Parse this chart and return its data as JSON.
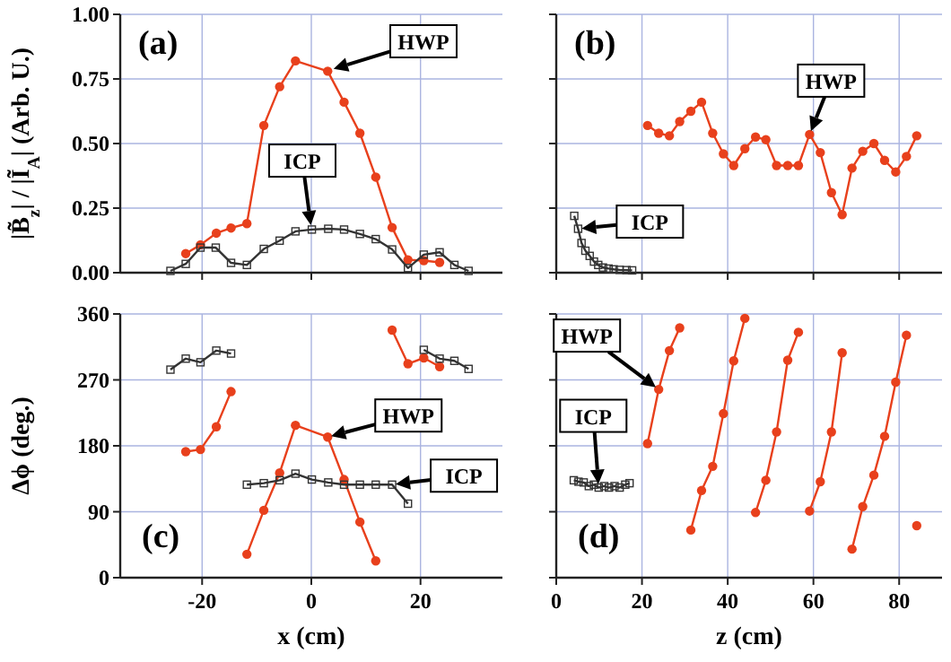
{
  "chart_data": [
    {
      "type": "line",
      "ylabel": "|B̃$_{z}$| / |Ĩ$_{A}$| (Arb. U.)",
      "xlim": [
        -35,
        35
      ],
      "xticks": [
        -20,
        0,
        20
      ],
      "ylim": [
        0,
        1
      ],
      "yticks": [
        {
          "value": 0,
          "label": "0.00"
        },
        {
          "value": 0.25,
          "label": "0.25"
        },
        {
          "value": 0.5,
          "label": "0.50"
        },
        {
          "value": 0.75,
          "label": "0.75"
        },
        {
          "value": 1,
          "label": "1.00"
        }
      ],
      "grid": true,
      "tick_labels": "y",
      "annotations": [
        "(a)",
        "HWP",
        {
          "text": "ICP",
          "x": 0,
          "y": 0.17
        }
      ],
      "series": [
        {
          "color": "#e8401c",
          "marker": "circle",
          "x": [
            -23,
            -20.3,
            -17.4,
            -14.7,
            -11.8,
            -8.7,
            -5.8,
            -2.9,
            3,
            6,
            8.9,
            11.8,
            14.8,
            17.7,
            20.6,
            23.5
          ],
          "values": [
            0.074,
            0.108,
            0.153,
            0.173,
            0.19,
            0.57,
            0.72,
            0.82,
            0.78,
            0.66,
            0.54,
            0.37,
            0.175,
            0.05,
            0.047,
            0.04
          ]
        },
        {
          "color": "#333333",
          "marker": "square",
          "x": [
            -25.8,
            -23,
            -20.3,
            -17.5,
            -14.7,
            -11.8,
            -8.7,
            -5.8,
            -2.9,
            0.1,
            3.1,
            6,
            8.9,
            11.8,
            14.8,
            17.7,
            20.6,
            23.5,
            26.2,
            28.8
          ],
          "values": [
            0.007,
            0.034,
            0.097,
            0.097,
            0.038,
            0.03,
            0.092,
            0.124,
            0.16,
            0.167,
            0.17,
            0.167,
            0.15,
            0.13,
            0.09,
            0.018,
            0.07,
            0.079,
            0.03,
            0.007
          ]
        }
      ]
    },
    {
      "type": "line",
      "xlim": [
        0,
        90
      ],
      "xticks": [
        0,
        20,
        40,
        60,
        80
      ],
      "ylim": [
        0,
        1
      ],
      "yticks": [
        0,
        0.25,
        0.5,
        0.75,
        1
      ],
      "grid": true,
      "tick_labels": false,
      "annotations": [
        "(b)",
        {
          "text": "HWP",
          "x": 59.1,
          "y": 0.535
        },
        {
          "text": "ICP",
          "x": 5.1,
          "y": 0.17
        }
      ],
      "series": [
        {
          "color": "#e8401c",
          "marker": "circle",
          "x": [
            21.3,
            23.9,
            26.4,
            28.8,
            31.4,
            33.9,
            36.5,
            39,
            41.4,
            44,
            46.5,
            48.9,
            51.4,
            54,
            56.5,
            59.1,
            61.6,
            64.2,
            66.7,
            69,
            71.5,
            74.1,
            76.6,
            79.2,
            81.7,
            84.1
          ],
          "values": [
            0.57,
            0.54,
            0.53,
            0.585,
            0.625,
            0.66,
            0.54,
            0.46,
            0.415,
            0.48,
            0.525,
            0.515,
            0.415,
            0.415,
            0.415,
            0.535,
            0.465,
            0.31,
            0.225,
            0.405,
            0.47,
            0.5,
            0.435,
            0.39,
            0.45,
            0.53
          ]
        },
        {
          "color": "#333333",
          "marker": "square",
          "x": [
            4.2,
            5.1,
            5.9,
            6.8,
            7.8,
            8.8,
            9.8,
            10.9,
            12.2,
            13.4,
            14.8,
            16.4,
            17.7
          ],
          "values": [
            0.22,
            0.17,
            0.115,
            0.085,
            0.065,
            0.043,
            0.03,
            0.02,
            0.016,
            0.013,
            0.011,
            0.01,
            0.009
          ]
        }
      ]
    },
    {
      "type": "line",
      "xlabel": "x (cm)",
      "ylabel": "Δϕ (deg.)",
      "xlim": [
        -35,
        35
      ],
      "xticks": [
        -20,
        0,
        20
      ],
      "ylim": [
        0,
        360
      ],
      "yticks": [
        0,
        90,
        180,
        270,
        360
      ],
      "grid": true,
      "annotations": [
        "(c)",
        {
          "text": "HWP",
          "x": 3,
          "y": 192
        },
        {
          "text": "ICP",
          "x": 14.8,
          "y": 127
        }
      ],
      "series": [
        {
          "color": "#e8401c",
          "marker": "circle",
          "x": [
            -23,
            -20.3,
            -17.4,
            -14.7,
            -13,
            -11.8,
            -8.7,
            -5.8,
            -2.9,
            3,
            6,
            8.9,
            11.8,
            13,
            14.8,
            17.7,
            20.6,
            23.5
          ],
          "values": [
            172,
            175,
            206,
            254,
            null,
            32,
            92,
            143,
            208,
            192,
            134,
            76,
            23,
            null,
            338,
            292,
            300,
            288
          ]
        },
        {
          "color": "#333333",
          "marker": "square",
          "x": [
            -25.8,
            -23,
            -20.3,
            -17.4,
            -14.7,
            -13,
            -11.8,
            -8.7,
            -5.8,
            -2.9,
            0.1,
            3.1,
            6,
            8.9,
            11.8,
            14.8,
            17.7,
            19,
            20.6,
            23.5,
            26.2,
            28.8
          ],
          "values": [
            284,
            299,
            294,
            310,
            306,
            null,
            127,
            129,
            133,
            142,
            134,
            130,
            127,
            127,
            127,
            127,
            101,
            null,
            311,
            299,
            296,
            285
          ]
        }
      ]
    },
    {
      "type": "line",
      "xlabel": "z (cm)",
      "xlim": [
        0,
        90
      ],
      "xticks": [
        0,
        20,
        40,
        60,
        80
      ],
      "ylim": [
        0,
        360
      ],
      "yticks": [
        0,
        90,
        180,
        270,
        360
      ],
      "grid": true,
      "tick_labels": "x",
      "annotations": [
        "(d)",
        {
          "text": "HWP",
          "x": 23.9,
          "y": 257
        },
        {
          "text": "ICP",
          "x": 9.9,
          "y": 123
        }
      ],
      "series": [
        {
          "color": "#e8401c",
          "marker": "circle",
          "x": [
            21.3,
            23.9,
            26.4,
            28.8,
            30,
            31.4,
            33.9,
            36.5,
            39,
            41.4,
            44,
            45,
            46.5,
            48.9,
            51.4,
            54,
            56.5,
            58,
            59.1,
            61.6,
            64.2,
            66.7,
            68,
            69,
            71.5,
            74.1,
            76.6,
            79.2,
            81.7,
            83,
            84.1
          ],
          "values": [
            183,
            257,
            310,
            341,
            null,
            65,
            119,
            152,
            224,
            296,
            354,
            null,
            89,
            133,
            199,
            297,
            335,
            null,
            91,
            131,
            199,
            307,
            null,
            39,
            97,
            140,
            193,
            267,
            331,
            null,
            71
          ]
        },
        {
          "color": "#333333",
          "marker": "square",
          "x": [
            4.1,
            5.2,
            6.4,
            7.6,
            8.8,
            9.9,
            11.2,
            12.3,
            13.6,
            14.8,
            16.1,
            17.1
          ],
          "values": [
            133,
            131,
            130,
            125,
            127,
            123,
            125,
            123,
            125,
            123,
            127,
            129
          ]
        }
      ]
    }
  ]
}
